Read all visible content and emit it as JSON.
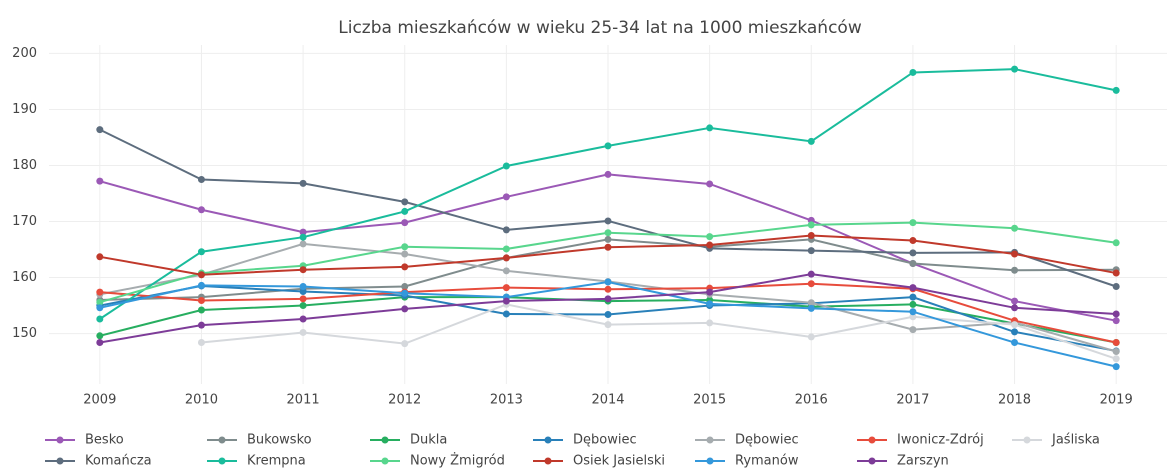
{
  "chart_data": {
    "type": "line",
    "title": "Liczba mieszkańców w wieku 25-34 lat na 1000 mieszkańców",
    "x": [
      2009,
      2010,
      2011,
      2012,
      2013,
      2014,
      2015,
      2016,
      2017,
      2018,
      2019
    ],
    "xlim": [
      2008.5,
      2019.5
    ],
    "xticks": [
      2009,
      2010,
      2011,
      2012,
      2013,
      2014,
      2015,
      2016,
      2017,
      2018,
      2019
    ],
    "ylim": [
      141,
      201.5
    ],
    "yticks": [
      150,
      160,
      170,
      180,
      190,
      200
    ],
    "grid": true,
    "legend": "bottom",
    "series": [
      {
        "name": "Besko",
        "color": "#9b59b6",
        "values": [
          177.2,
          172.1,
          168.1,
          169.8,
          174.4,
          178.4,
          176.7,
          170.2,
          162.5,
          155.8,
          152.3
        ]
      },
      {
        "name": "Bukowsko",
        "color": "#7f8c8d",
        "values": [
          156,
          156.5,
          158,
          158.4,
          163.5,
          166.8,
          165.5,
          166.8,
          162.5,
          161.3,
          161.4
        ]
      },
      {
        "name": "Dukla",
        "color": "#27ae60",
        "values": [
          149.6,
          154.2,
          155,
          156.5,
          156.5,
          155.8,
          156,
          154.8,
          155.2,
          151.8,
          148.4
        ]
      },
      {
        "name": "Dębowiec",
        "color": "#2980b9",
        "values": [
          155,
          158.5,
          157.5,
          156.8,
          153.5,
          153.4,
          155,
          155.4,
          156.5,
          150.3,
          146.9
        ]
      },
      {
        "name": "Dębowiec",
        "color": "#a6acaf",
        "values": [
          157,
          160.5,
          166,
          164.2,
          161.2,
          159.3,
          157,
          155.5,
          150.7,
          152,
          146.8
        ]
      },
      {
        "name": "Iwonicz-Zdrój",
        "color": "#e74c3c",
        "values": [
          157.4,
          155.9,
          156.2,
          157.4,
          158.2,
          157.9,
          158.1,
          158.9,
          158,
          152.3,
          148.4
        ]
      },
      {
        "name": "Jaśliska",
        "color": "#d5d8dc",
        "values": [
          null,
          148.4,
          150.2,
          148.2,
          155.2,
          151.6,
          151.9,
          149.4,
          153,
          151.6,
          145.5
        ]
      },
      {
        "name": "Komańcza",
        "color": "#5d6d7e",
        "values": [
          186.4,
          177.5,
          176.8,
          173.5,
          168.5,
          170.1,
          165.2,
          164.8,
          164.4,
          164.5,
          158.4
        ]
      },
      {
        "name": "Krempna",
        "color": "#1abc9c",
        "values": [
          152.6,
          164.6,
          167.2,
          171.8,
          179.9,
          183.5,
          186.7,
          184.3,
          196.6,
          197.2,
          193.4
        ]
      },
      {
        "name": "Nowy Żmigród",
        "color": "#58d68d",
        "values": [
          155.6,
          160.8,
          162.1,
          165.5,
          165.1,
          168,
          167.3,
          169.4,
          169.8,
          168.8,
          166.2
        ]
      },
      {
        "name": "Osiek Jasielski",
        "color": "#c0392b",
        "values": [
          163.7,
          160.5,
          161.4,
          161.9,
          163.5,
          165.4,
          165.8,
          167.5,
          166.6,
          164.2,
          160.8
        ]
      },
      {
        "name": "Rymanów",
        "color": "#3498db",
        "values": [
          154.6,
          158.6,
          158.4,
          157.2,
          156.5,
          159.2,
          155.3,
          154.5,
          153.9,
          148.4,
          144.1
        ]
      },
      {
        "name": "Zarszyn",
        "color": "#7d3c98",
        "values": [
          148.4,
          151.5,
          152.6,
          154.4,
          155.8,
          156.2,
          157.4,
          160.6,
          158.2,
          154.6,
          153.5
        ]
      }
    ]
  }
}
